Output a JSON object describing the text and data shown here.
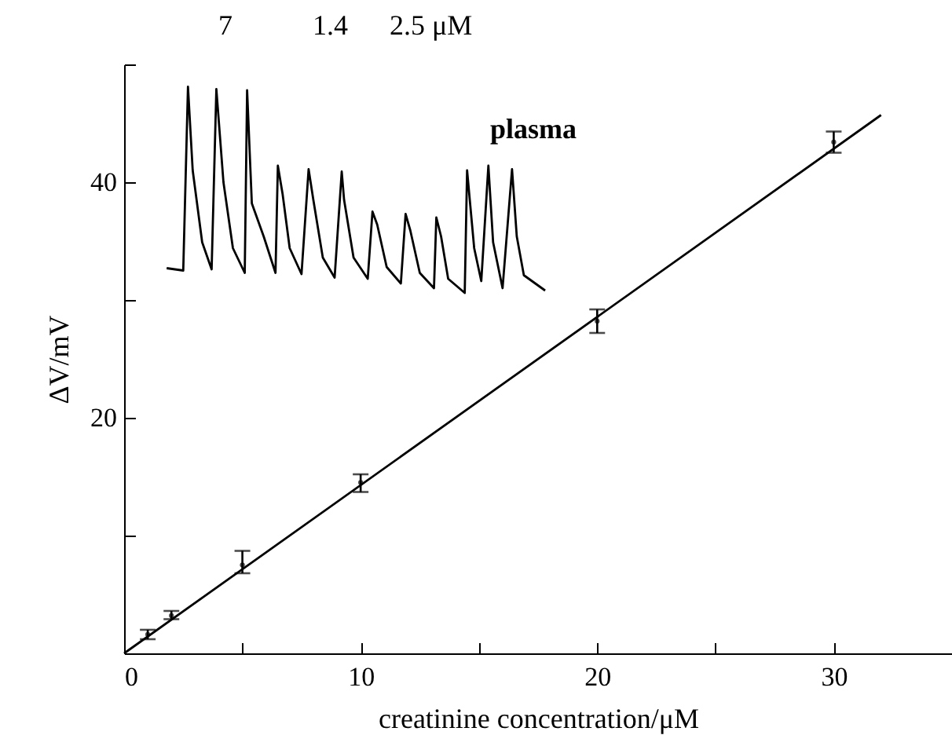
{
  "chart_data": {
    "type": "scatter",
    "xlabel": "creatinine concentration/μM",
    "ylabel": "ΔV/mV",
    "xlim": [
      0,
      35
    ],
    "ylim": [
      0,
      50
    ],
    "xticks": [
      0,
      {
        "value": 5,
        "label": null
      },
      10,
      {
        "value": 15,
        "label": null
      },
      20,
      {
        "value": 25,
        "label": null
      },
      30
    ],
    "yticks": [
      {
        "value": 0,
        "label": null
      },
      {
        "value": 10,
        "label": null
      },
      20,
      {
        "value": 30,
        "label": null
      },
      40,
      {
        "value": 50,
        "label": null
      }
    ],
    "grid": false,
    "annotations": [
      "7",
      "1.4",
      "2.5 μM",
      "plasma"
    ],
    "series": [
      {
        "color": "#000000",
        "marker": "circle",
        "x": [
          1,
          2,
          5,
          10,
          20,
          30
        ],
        "values": [
          1.6,
          3.2,
          7.5,
          14.5,
          28.2,
          43.4
        ],
        "errors": [
          [
            1.2,
            2.0
          ],
          [
            2.9,
            3.6
          ],
          [
            6.8,
            8.7
          ],
          [
            13.7,
            15.2
          ],
          [
            27.2,
            29.2
          ],
          [
            42.5,
            44.3
          ]
        ]
      },
      {
        "type": "line",
        "color": "#000000",
        "x": [
          0,
          32
        ],
        "values": [
          0,
          45.7
        ]
      },
      {
        "type": "line",
        "color": "#000000",
        "x": [
          1.8,
          2.5,
          2.7,
          2.9,
          3.3,
          3.7,
          3.9,
          4.2,
          4.6,
          5.1,
          5.2,
          5.4,
          5.9,
          6.4,
          6.5,
          6.7,
          7.0,
          7.5,
          7.8,
          8.0,
          8.4,
          8.9,
          9.2,
          9.3,
          9.7,
          10.3,
          10.5,
          10.7,
          11.1,
          11.7,
          11.9,
          12.1,
          12.5,
          13.1,
          13.2,
          13.4,
          13.7,
          14.4,
          14.5,
          14.8,
          15.1,
          15.4,
          15.6,
          16.0,
          16.4,
          16.6,
          16.9,
          17.8
        ],
        "values": [
          32.7,
          32.5,
          48.1,
          41.0,
          34.9,
          32.6,
          47.9,
          40.0,
          34.4,
          32.3,
          47.8,
          38.2,
          35.4,
          32.3,
          41.4,
          39.0,
          34.4,
          32.2,
          41.1,
          38.5,
          33.6,
          31.9,
          40.9,
          38.5,
          33.6,
          31.8,
          37.5,
          36.4,
          32.8,
          31.4,
          37.3,
          35.9,
          32.3,
          31.0,
          37.0,
          35.4,
          31.8,
          30.6,
          41.0,
          34.4,
          31.6,
          41.4,
          34.9,
          31.0,
          41.1,
          35.4,
          32.1,
          30.8
        ]
      }
    ]
  }
}
